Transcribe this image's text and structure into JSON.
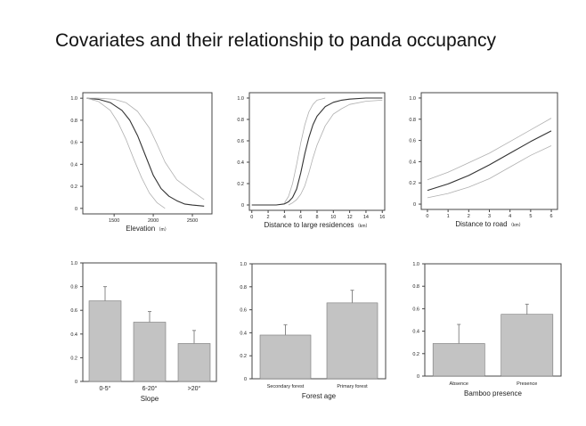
{
  "slide": {
    "title": "Covariates and their relationship to panda occupancy"
  },
  "colors": {
    "frame": "#444444",
    "curve": "#333333",
    "ci": "#b0b0b0",
    "bar": "#c3c3c3",
    "bar_edge": "#777777",
    "errbar": "#888888"
  },
  "chart_data": [
    {
      "type": "line",
      "title": "",
      "xlabel": "Elevation",
      "xunit": "（m）",
      "ylabel": "",
      "xlim": [
        1100,
        2750
      ],
      "ylim": [
        -0.05,
        1.05
      ],
      "xticks": [
        1500,
        2000,
        2500
      ],
      "yticks": [
        0,
        0.2,
        0.4,
        0.6,
        0.8,
        1.0
      ],
      "series": [
        {
          "name": "mean",
          "x": [
            1150,
            1300,
            1450,
            1600,
            1700,
            1800,
            1900,
            2000,
            2100,
            2200,
            2300,
            2400,
            2500,
            2650
          ],
          "y": [
            1.0,
            0.99,
            0.96,
            0.89,
            0.8,
            0.66,
            0.48,
            0.3,
            0.18,
            0.11,
            0.07,
            0.04,
            0.03,
            0.02
          ]
        },
        {
          "name": "upper",
          "x": [
            1150,
            1300,
            1500,
            1650,
            1800,
            1950,
            2050,
            2150,
            2300,
            2450,
            2650
          ],
          "y": [
            1.0,
            1.0,
            0.99,
            0.96,
            0.88,
            0.73,
            0.58,
            0.42,
            0.26,
            0.18,
            0.08
          ]
        },
        {
          "name": "lower",
          "x": [
            1150,
            1300,
            1450,
            1550,
            1650,
            1750,
            1850,
            1950,
            2050,
            2150
          ],
          "y": [
            1.0,
            0.97,
            0.89,
            0.78,
            0.63,
            0.45,
            0.28,
            0.14,
            0.05,
            0.0
          ]
        }
      ]
    },
    {
      "type": "line",
      "title": "",
      "xlabel": "Distance to large residences",
      "xunit": "（km）",
      "ylabel": "",
      "xlim": [
        -0.3,
        16.3
      ],
      "ylim": [
        -0.05,
        1.05
      ],
      "xticks": [
        0,
        2,
        4,
        6,
        8,
        10,
        12,
        14,
        16
      ],
      "yticks": [
        0,
        0.2,
        0.4,
        0.6,
        0.8,
        1.0
      ],
      "series": [
        {
          "name": "mean",
          "x": [
            0,
            2,
            3,
            4,
            4.5,
            5,
            5.5,
            6,
            6.5,
            7,
            7.5,
            8,
            9,
            10,
            11,
            12,
            14,
            16
          ],
          "y": [
            0.0,
            0.0,
            0.0,
            0.01,
            0.03,
            0.07,
            0.15,
            0.3,
            0.48,
            0.63,
            0.75,
            0.83,
            0.92,
            0.96,
            0.98,
            0.99,
            1.0,
            1.0
          ]
        },
        {
          "name": "upper",
          "x": [
            4,
            4.5,
            5,
            5.5,
            6,
            6.5,
            7,
            7.5,
            8,
            8.5,
            9
          ],
          "y": [
            0.02,
            0.08,
            0.2,
            0.38,
            0.58,
            0.75,
            0.87,
            0.94,
            0.98,
            0.99,
            1.0
          ]
        },
        {
          "name": "lower",
          "x": [
            4.5,
            5,
            5.5,
            6,
            6.5,
            7,
            7.5,
            8,
            9,
            10,
            11,
            12,
            14,
            16
          ],
          "y": [
            0.0,
            0.02,
            0.05,
            0.1,
            0.18,
            0.3,
            0.44,
            0.56,
            0.74,
            0.85,
            0.9,
            0.94,
            0.97,
            0.98
          ]
        }
      ]
    },
    {
      "type": "line",
      "title": "",
      "xlabel": "Distance to road",
      "xunit": "（km）",
      "ylabel": "",
      "xlim": [
        -0.3,
        6.3
      ],
      "ylim": [
        -0.05,
        1.05
      ],
      "xticks": [
        0,
        1,
        2,
        3,
        4,
        5,
        6
      ],
      "yticks": [
        0,
        0.2,
        0.4,
        0.6,
        0.8,
        1.0
      ],
      "series": [
        {
          "name": "mean",
          "x": [
            0,
            1,
            2,
            3,
            4,
            5,
            6
          ],
          "y": [
            0.13,
            0.19,
            0.27,
            0.37,
            0.48,
            0.59,
            0.69
          ]
        },
        {
          "name": "upper",
          "x": [
            0,
            1,
            2,
            3,
            4,
            5,
            6
          ],
          "y": [
            0.23,
            0.3,
            0.39,
            0.48,
            0.59,
            0.7,
            0.81
          ]
        },
        {
          "name": "lower",
          "x": [
            0,
            1,
            2,
            3,
            4,
            5,
            6
          ],
          "y": [
            0.06,
            0.1,
            0.16,
            0.24,
            0.35,
            0.46,
            0.55
          ]
        }
      ]
    },
    {
      "type": "bar",
      "title": "",
      "xlabel": "Slope",
      "ylabel": "",
      "ylim": [
        0,
        1.0
      ],
      "yticks": [
        0,
        0.2,
        0.4,
        0.6,
        0.8,
        1.0
      ],
      "categories": [
        "0-5°",
        "6-20°",
        ">20°"
      ],
      "values": [
        0.68,
        0.5,
        0.32
      ],
      "errors": [
        0.12,
        0.09,
        0.11
      ]
    },
    {
      "type": "bar",
      "title": "",
      "xlabel": "Forest age",
      "ylabel": "",
      "ylim": [
        0,
        1.0
      ],
      "yticks": [
        0,
        0.2,
        0.4,
        0.6,
        0.8,
        1.0
      ],
      "categories": [
        "Secondary forest",
        "Primary forest"
      ],
      "values": [
        0.38,
        0.66
      ],
      "errors": [
        0.09,
        0.11
      ]
    },
    {
      "type": "bar",
      "title": "",
      "xlabel": "Bamboo presence",
      "ylabel": "",
      "ylim": [
        0,
        1.0
      ],
      "yticks": [
        0,
        0.2,
        0.4,
        0.6,
        0.8,
        1.0
      ],
      "categories": [
        "Absence",
        "Presence"
      ],
      "values": [
        0.29,
        0.55
      ],
      "errors": [
        0.17,
        0.09
      ]
    }
  ]
}
